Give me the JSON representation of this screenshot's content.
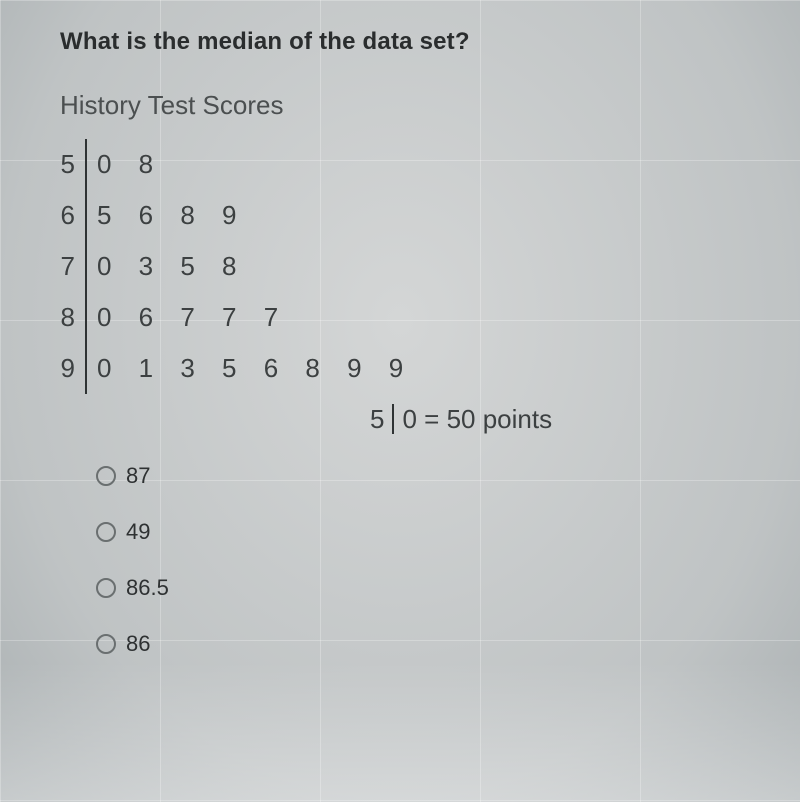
{
  "question": "What is the median of the data set?",
  "title": "History Test Scores",
  "stemleaf": {
    "rows": [
      {
        "stem": "5",
        "leaves": "0 8"
      },
      {
        "stem": "6",
        "leaves": "5 6 8 9"
      },
      {
        "stem": "7",
        "leaves": "0 3 5 8"
      },
      {
        "stem": "8",
        "leaves": "0 6 7 7 7"
      },
      {
        "stem": "9",
        "leaves": "0 1 3 5 6 8 9 9"
      }
    ],
    "legend": {
      "stem": "5",
      "leaf": "0",
      "meaning": "= 50 points"
    }
  },
  "options": [
    {
      "label": "87"
    },
    {
      "label": "49"
    },
    {
      "label": "86.5"
    },
    {
      "label": "86"
    }
  ],
  "colors": {
    "text": "#2e3132",
    "muted": "#4b4f50",
    "rule": "#2f3334",
    "bg": "#c8cbcc"
  }
}
